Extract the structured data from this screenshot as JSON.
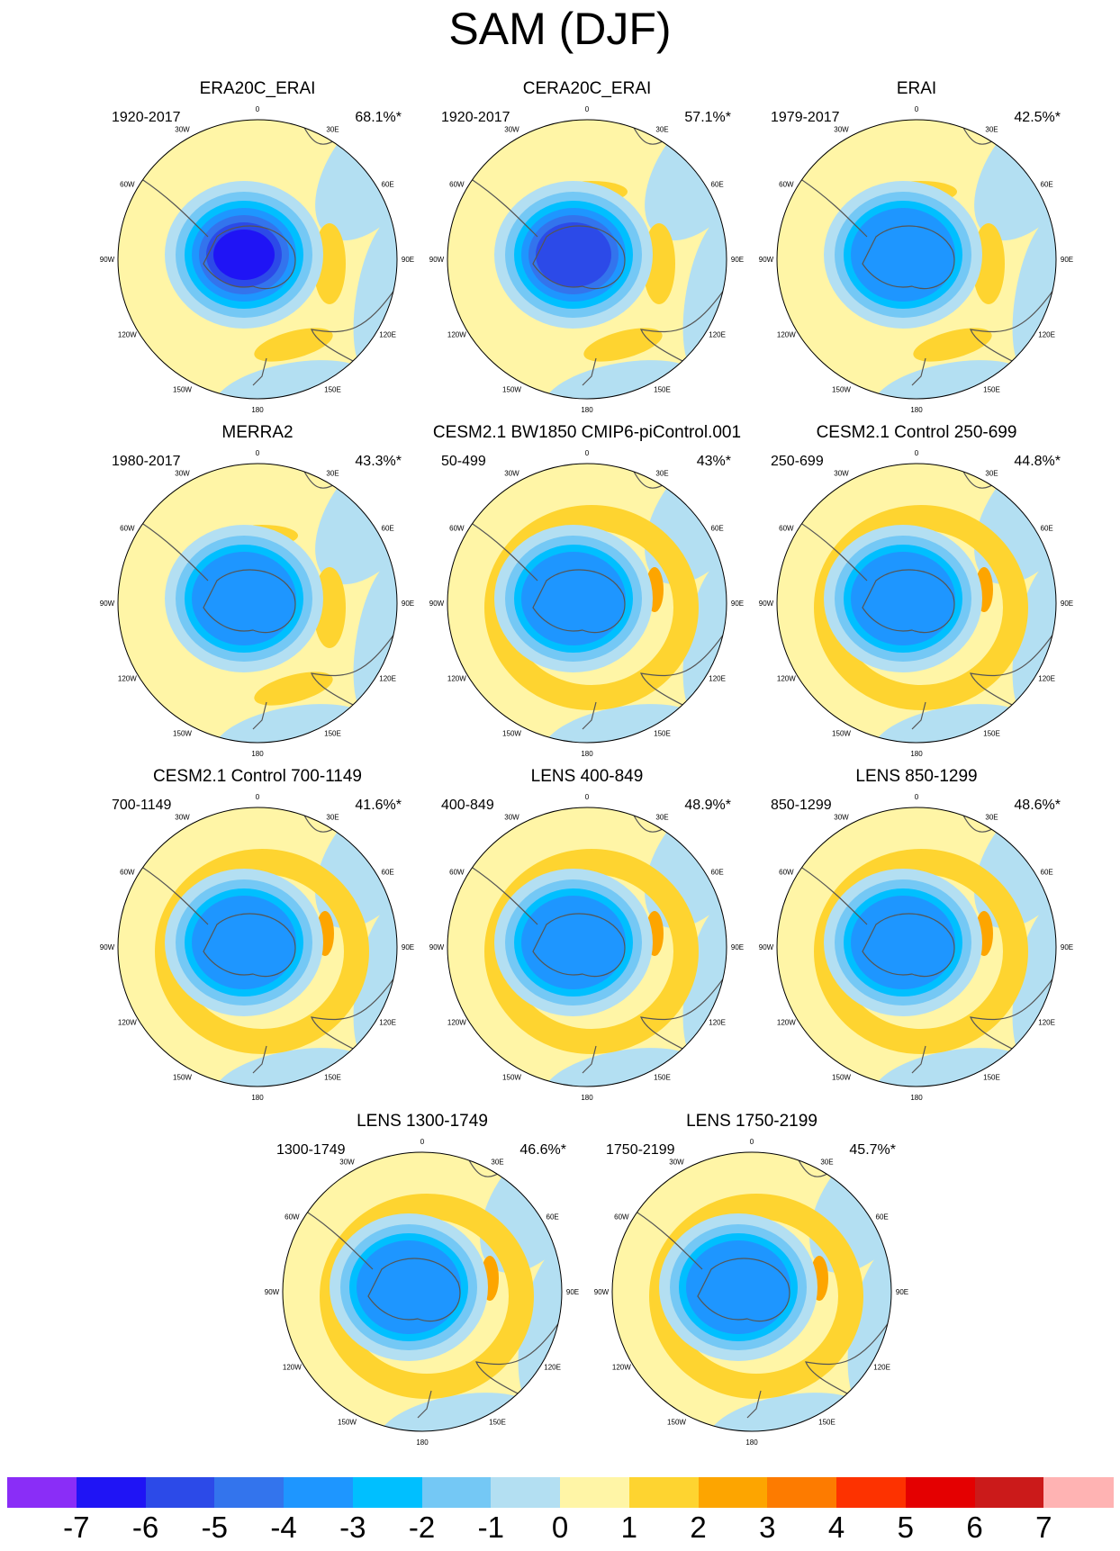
{
  "title": "SAM (DJF)",
  "colors": {
    "cb": [
      "#8a2df7",
      "#1f14f5",
      "#2c4ae8",
      "#3374ed",
      "#1e96ff",
      "#00bfff",
      "#74c8f5",
      "#b3dff2",
      "#fff5a6",
      "#fed430",
      "#fda500",
      "#fd7b00",
      "#fd3200",
      "#e40001",
      "#cb1a1a",
      "#ffb3b3"
    ],
    "coast": "#555555",
    "outline": "#000000"
  },
  "colorbar": {
    "labels": [
      "-7",
      "-6",
      "-5",
      "-4",
      "-3",
      "-2",
      "-1",
      "0",
      "1",
      "2",
      "3",
      "4",
      "5",
      "6",
      "7"
    ]
  },
  "lon_labels": [
    "0",
    "30E",
    "60E",
    "90E",
    "120E",
    "150E",
    "180",
    "150W",
    "120W",
    "90W",
    "60W",
    "30W"
  ],
  "panels": [
    {
      "title": "ERA20C_ERAI",
      "period": "1920-2017",
      "pct": "68.1%*",
      "style": "strong"
    },
    {
      "title": "CERA20C_ERAI",
      "period": "1920-2017",
      "pct": "57.1%*",
      "style": "strong2"
    },
    {
      "title": "ERAI",
      "period": "1979-2017",
      "pct": "42.5%*",
      "style": "weak"
    },
    {
      "title": "MERRA2",
      "period": "1980-2017",
      "pct": "43.3%*",
      "style": "weak"
    },
    {
      "title": "CESM2.1 BW1850 CMIP6-piControl.001",
      "period": "50-499",
      "pct": "43%*",
      "style": "model"
    },
    {
      "title": "CESM2.1 Control 250-699",
      "period": "250-699",
      "pct": "44.8%*",
      "style": "model"
    },
    {
      "title": "CESM2.1 Control 700-1149",
      "period": "700-1149",
      "pct": "41.6%*",
      "style": "model"
    },
    {
      "title": "LENS 400-849",
      "period": "400-849",
      "pct": "48.9%*",
      "style": "model"
    },
    {
      "title": "LENS 850-1299",
      "period": "850-1299",
      "pct": "48.6%*",
      "style": "model"
    },
    {
      "title": "LENS 1300-1749",
      "period": "1300-1749",
      "pct": "46.6%*",
      "style": "model"
    },
    {
      "title": "LENS 1750-2199",
      "period": "1750-2199",
      "pct": "45.7%*",
      "style": "model"
    }
  ]
}
